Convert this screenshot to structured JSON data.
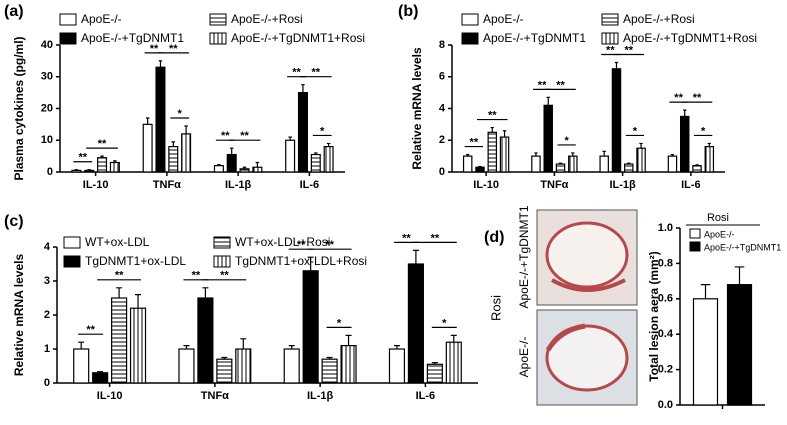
{
  "chart_data": [
    {
      "type": "bar",
      "panel": "(a)",
      "y_label": "Plasma cytokines (pg/ml)",
      "categories": [
        "IL-10",
        "TNFα",
        "IL-1β",
        "IL-6"
      ],
      "series": [
        {
          "name": "ApoE-/-",
          "color": "#ffffff",
          "values": [
            0.5,
            15,
            2,
            10
          ],
          "errors": [
            0.2,
            2,
            0.3,
            1
          ]
        },
        {
          "name": "ApoE-/-+TgDNMT1",
          "color": "#000000",
          "values": [
            0.5,
            33,
            5.5,
            25
          ],
          "errors": [
            0.2,
            2,
            2,
            2.5
          ]
        },
        {
          "name": "ApoE-/-+Rosi",
          "color": "#ffffff",
          "hatch": "horizontal",
          "values": [
            4.5,
            8,
            1,
            5.5
          ],
          "errors": [
            0.5,
            1.5,
            0.5,
            0.5
          ]
        },
        {
          "name": "ApoE-/-+TgDNMT1+Rosi",
          "color": "#ffffff",
          "hatch": "vertical",
          "values": [
            3,
            12,
            1.5,
            8
          ],
          "errors": [
            0.5,
            2.5,
            1.5,
            1
          ]
        }
      ],
      "significance": [
        {
          "category": 0,
          "from": 0,
          "to": 1,
          "label": "**"
        },
        {
          "category": 0,
          "from": 1,
          "to": 3,
          "label": "**"
        },
        {
          "category": 1,
          "from": 0,
          "to": 1,
          "label": "**"
        },
        {
          "category": 1,
          "from": 1,
          "to": 3,
          "label": "**"
        },
        {
          "category": 1,
          "from": 2,
          "to": 3,
          "label": "*"
        },
        {
          "category": 2,
          "from": 0,
          "to": 1,
          "label": "**"
        },
        {
          "category": 2,
          "from": 1,
          "to": 3,
          "label": "**"
        },
        {
          "category": 3,
          "from": 0,
          "to": 1,
          "label": "**"
        },
        {
          "category": 3,
          "from": 1,
          "to": 3,
          "label": "**"
        },
        {
          "category": 3,
          "from": 2,
          "to": 3,
          "label": "*"
        }
      ],
      "ylim": [
        0,
        40
      ],
      "yticks": [
        0,
        10,
        20,
        30,
        40
      ]
    },
    {
      "type": "bar",
      "panel": "(b)",
      "y_label": "Relative mRNA levels",
      "categories": [
        "IL-10",
        "TNFα",
        "IL-1β",
        "IL-6"
      ],
      "series": [
        {
          "name": "ApoE-/-",
          "color": "#ffffff",
          "values": [
            1,
            1,
            1,
            1
          ],
          "errors": [
            0.1,
            0.2,
            0.3,
            0.1
          ]
        },
        {
          "name": "ApoE-/-+TgDNMT1",
          "color": "#000000",
          "values": [
            0.3,
            4.2,
            6.5,
            3.5
          ],
          "errors": [
            0.05,
            0.5,
            0.4,
            0.4
          ]
        },
        {
          "name": "ApoE-/-+Rosi",
          "color": "#ffffff",
          "hatch": "horizontal",
          "values": [
            2.5,
            0.5,
            0.5,
            0.4
          ],
          "errors": [
            0.3,
            0.05,
            0.05,
            0.05
          ]
        },
        {
          "name": "ApoE-/-+TgDNMT1+Rosi",
          "color": "#ffffff",
          "hatch": "vertical",
          "values": [
            2.2,
            1,
            1.5,
            1.6
          ],
          "errors": [
            0.4,
            0.2,
            0.3,
            0.2
          ]
        }
      ],
      "significance": [
        {
          "category": 0,
          "from": 0,
          "to": 1,
          "label": "**"
        },
        {
          "category": 0,
          "from": 1,
          "to": 3,
          "label": "**"
        },
        {
          "category": 1,
          "from": 0,
          "to": 1,
          "label": "**"
        },
        {
          "category": 1,
          "from": 1,
          "to": 3,
          "label": "**"
        },
        {
          "category": 1,
          "from": 2,
          "to": 3,
          "label": "*"
        },
        {
          "category": 2,
          "from": 0,
          "to": 1,
          "label": "**"
        },
        {
          "category": 2,
          "from": 1,
          "to": 3,
          "label": "**"
        },
        {
          "category": 2,
          "from": 2,
          "to": 3,
          "label": "*"
        },
        {
          "category": 3,
          "from": 0,
          "to": 1,
          "label": "**"
        },
        {
          "category": 3,
          "from": 1,
          "to": 3,
          "label": "**"
        },
        {
          "category": 3,
          "from": 2,
          "to": 3,
          "label": "*"
        }
      ],
      "ylim": [
        0,
        8
      ],
      "yticks": [
        0,
        2,
        4,
        6,
        8
      ]
    },
    {
      "type": "bar",
      "panel": "(c)",
      "y_label": "Relative mRNA levels",
      "categories": [
        "IL-10",
        "TNFα",
        "IL-1β",
        "IL-6"
      ],
      "series": [
        {
          "name": "WT+ox-LDL",
          "color": "#ffffff",
          "values": [
            1,
            1,
            1,
            1
          ],
          "errors": [
            0.2,
            0.1,
            0.1,
            0.1
          ]
        },
        {
          "name": "TgDNMT1+ox-LDL",
          "color": "#000000",
          "values": [
            0.3,
            2.5,
            3.3,
            3.5
          ],
          "errors": [
            0.03,
            0.3,
            0.4,
            0.4
          ]
        },
        {
          "name": "WT+ox-LDL+Rosi",
          "color": "#ffffff",
          "hatch": "horizontal",
          "values": [
            2.5,
            0.7,
            0.7,
            0.55
          ],
          "errors": [
            0.3,
            0.05,
            0.05,
            0.05
          ]
        },
        {
          "name": "TgDNMT1+ox-LDL+Rosi",
          "color": "#ffffff",
          "hatch": "vertical",
          "values": [
            2.2,
            1,
            1.1,
            1.2
          ],
          "errors": [
            0.4,
            0.3,
            0.3,
            0.2
          ]
        }
      ],
      "significance": [
        {
          "category": 0,
          "from": 0,
          "to": 1,
          "label": "**"
        },
        {
          "category": 0,
          "from": 1,
          "to": 3,
          "label": "**"
        },
        {
          "category": 1,
          "from": 0,
          "to": 1,
          "label": "**"
        },
        {
          "category": 1,
          "from": 1,
          "to": 3,
          "label": "**"
        },
        {
          "category": 2,
          "from": 0,
          "to": 1,
          "label": "**"
        },
        {
          "category": 2,
          "from": 1,
          "to": 3,
          "label": "**"
        },
        {
          "category": 2,
          "from": 2,
          "to": 3,
          "label": "*"
        },
        {
          "category": 3,
          "from": 0,
          "to": 1,
          "label": "**"
        },
        {
          "category": 3,
          "from": 1,
          "to": 3,
          "label": "**"
        },
        {
          "category": 3,
          "from": 2,
          "to": 3,
          "label": "*"
        }
      ],
      "ylim": [
        0,
        4
      ],
      "yticks": [
        0,
        1,
        2,
        3,
        4
      ]
    },
    {
      "type": "bar",
      "panel": "(d)",
      "y_label": "Total lesion aera (mm²)",
      "image_labels": [
        "ApoE-/-+TgDNMT1",
        "ApoE-/-"
      ],
      "image_group_label": "Rosi",
      "legend_title": "Rosi",
      "series": [
        {
          "name": "ApoE-/-",
          "color": "#ffffff",
          "values": [
            0.6
          ],
          "errors": [
            0.08
          ]
        },
        {
          "name": "ApoE-/-+TgDNMT1",
          "color": "#000000",
          "values": [
            0.68
          ],
          "errors": [
            0.1
          ]
        }
      ],
      "ylim": [
        0,
        1
      ],
      "yticks": [
        {
          "value": 0,
          "label": "0.0"
        },
        0.2,
        0.4,
        0.6,
        0.8,
        {
          "value": 1,
          "label": "1.0"
        }
      ]
    }
  ]
}
